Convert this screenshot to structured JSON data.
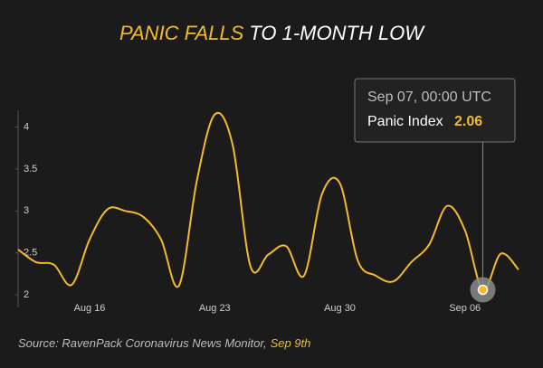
{
  "chart_data": {
    "type": "line",
    "title_highlight": "PANIC FALLS",
    "title": "TO 1-MONTH LOW",
    "categories": [
      null,
      null,
      null,
      null,
      "Aug 16",
      null,
      null,
      null,
      null,
      null,
      null,
      "Aug 23",
      null,
      null,
      null,
      null,
      null,
      null,
      "Aug 30",
      null,
      null,
      null,
      null,
      null,
      null,
      "Sep 06",
      null,
      null,
      null
    ],
    "series": [
      {
        "name": "Panic Index",
        "color": "#f3bb2b",
        "values": [
          2.54,
          2.39,
          2.36,
          2.12,
          2.66,
          3.02,
          3.0,
          2.93,
          2.66,
          2.11,
          3.36,
          4.15,
          3.79,
          2.34,
          2.48,
          2.58,
          2.23,
          3.2,
          3.33,
          2.41,
          2.23,
          2.16,
          2.39,
          2.6,
          3.06,
          2.77,
          2.06,
          2.49,
          2.3
        ]
      }
    ],
    "ylim": [
      1.85,
      4.2
    ],
    "yticks": [
      2,
      2.5,
      3,
      3.5,
      4
    ],
    "grid": false,
    "tooltip": {
      "date": "Sep 07, 00:00 UTC",
      "index": 26
    },
    "source": "Source: RavenPack Coronavirus News Monitor,",
    "source_date": "Sep 9th"
  }
}
